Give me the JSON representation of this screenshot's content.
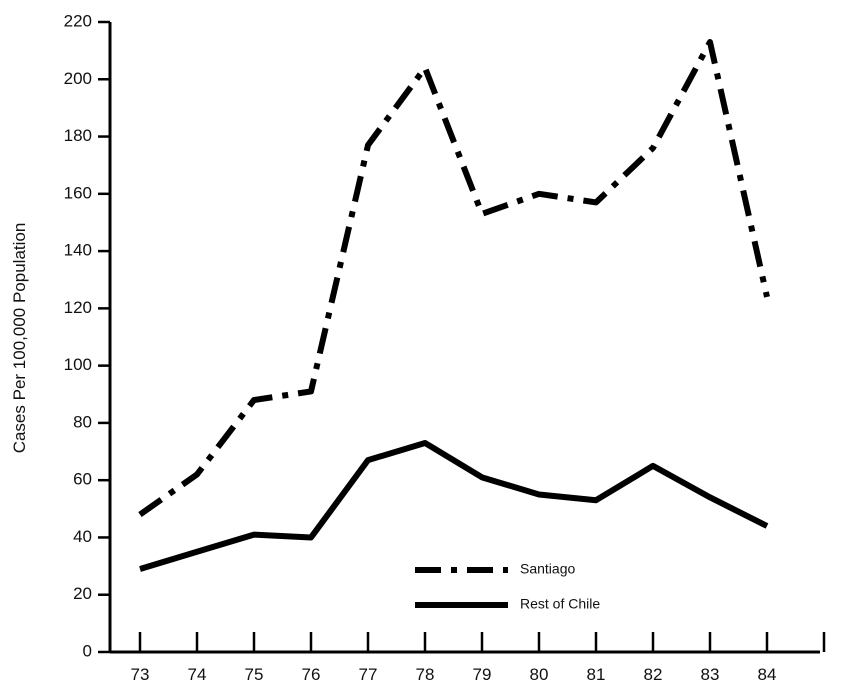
{
  "chart_data": {
    "type": "line",
    "title": "",
    "xlabel": "",
    "ylabel": "Cases Per 100,000 Population",
    "x": [
      "73",
      "74",
      "75",
      "76",
      "77",
      "78",
      "79",
      "80",
      "81",
      "82",
      "83",
      "84"
    ],
    "ylim": [
      0,
      220
    ],
    "yticks": [
      0,
      20,
      40,
      60,
      80,
      100,
      120,
      140,
      160,
      180,
      200,
      220
    ],
    "grid": false,
    "legend_placement": "bottom-center",
    "series": [
      {
        "name": "Santiago",
        "style": "dash-dot",
        "color": "#000000",
        "values": [
          48,
          62,
          88,
          91,
          177,
          204,
          153,
          160,
          157,
          176,
          213,
          124
        ]
      },
      {
        "name": "Rest of Chile",
        "style": "solid",
        "color": "#000000",
        "values": [
          29,
          35,
          41,
          40,
          67,
          73,
          61,
          55,
          53,
          65,
          54,
          44
        ]
      }
    ]
  }
}
